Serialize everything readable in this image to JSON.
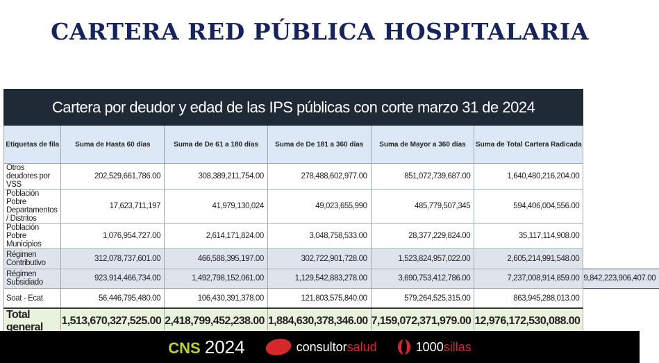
{
  "title": "CARTERA RED PÚBLICA HOSPITALARIA",
  "table": {
    "caption": "Cartera por deudor y edad de las IPS públicas con corte marzo 31 de 2024",
    "headers": [
      "Etiquetas de fila",
      "Suma de Hasta 60 días",
      "Suma de De 61 a 180 días",
      "Suma de De 181 a 360 días",
      "Suma de Mayor a 360 días",
      "Suma de Total Cartera Radicada"
    ],
    "rows": [
      {
        "label": "Otros deudores por VSS",
        "values": [
          "202,529,661,786.00",
          "308,389,211,754.00",
          "278,488,602,977.00",
          "851,072,739,687.00",
          "1,640,480,216,204.00"
        ],
        "extra": ""
      },
      {
        "label": "Población Pobre Departamentos / Distritos",
        "values": [
          "17,623,711,197",
          "41,979,130,024",
          "49,023,655,990",
          "485,779,507,345",
          "594,406,004,556.00"
        ],
        "extra": ""
      },
      {
        "label": "Población Pobre Municipios",
        "values": [
          "1,076,954,727.00",
          "2,614,171,824.00",
          "3,048,758,533.00",
          "28,377,229,824.00",
          "35,117,114,908.00"
        ],
        "extra": ""
      },
      {
        "label": "Régimen Contributivo",
        "values": [
          "312,078,737,601.00",
          "466,588,395,197.00",
          "302,722,901,728.00",
          "1,523,824,957,022.00",
          "2,605,214,991,548.00"
        ],
        "extra": ""
      },
      {
        "label": "Régimen Subsidiado",
        "values": [
          "923,914,466,734.00",
          "1,492,798,152,061.00",
          "1,129,542,883,278.00",
          "3,690,753,412,786.00",
          "7,237,008,914,859.00"
        ],
        "extra": "9,842,223,906,407.00"
      },
      {
        "label": "Soat - Ecat",
        "values": [
          "56,446,795,480.00",
          "106,430,391,378.00",
          "121,803,575,840.00",
          "579,264,525,315.00",
          "863,945,288,013.00"
        ],
        "extra": ""
      }
    ],
    "total": {
      "label": "Total general",
      "values": [
        "1,513,670,327,525.00",
        "2,418,799,452,238.00",
        "1,884,630,378,346.00",
        "7,159,072,371,979.00",
        "12,976,172,530,088.00"
      ]
    }
  },
  "footer": {
    "cns": "CNS",
    "year": "2024",
    "brand1_a": "consultor",
    "brand1_b": "salud",
    "brand2_a": "1000",
    "brand2_b": "sillas"
  }
}
